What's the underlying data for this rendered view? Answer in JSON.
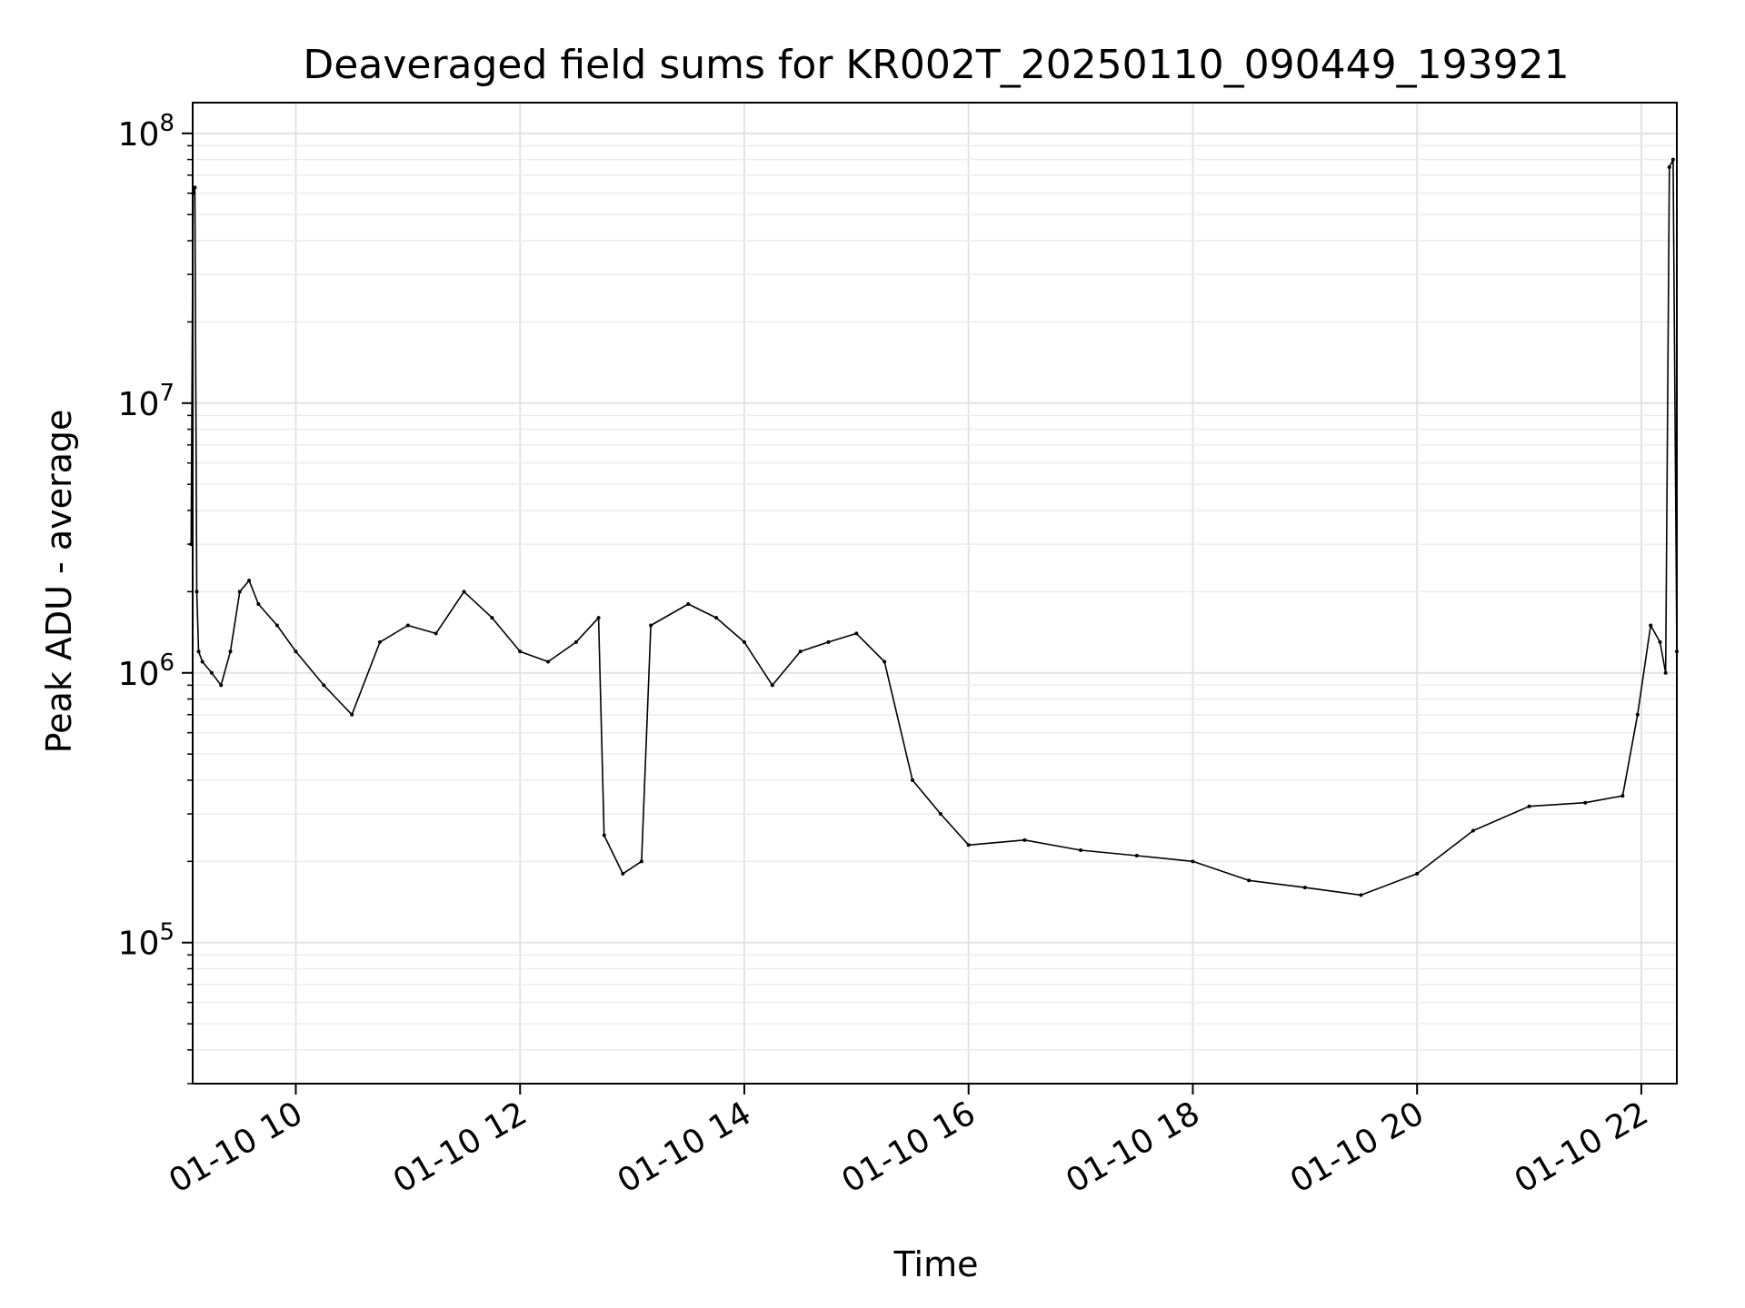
{
  "chart_data": {
    "type": "line",
    "title": "Deaveraged field sums for KR002T_20250110_090449_193921",
    "xlabel": "Time",
    "ylabel": "Peak ADU - average",
    "yscale": "log",
    "ylim": [
      30000,
      130000000
    ],
    "xlim": [
      "2025-01-10 09:04:49",
      "2025-01-10 22:19:00"
    ],
    "grid": true,
    "line_color": "#000000",
    "x_ticks": [
      {
        "label": "01-10 10",
        "value": "2025-01-10 10:00"
      },
      {
        "label": "01-10 12",
        "value": "2025-01-10 12:00"
      },
      {
        "label": "01-10 14",
        "value": "2025-01-10 14:00"
      },
      {
        "label": "01-10 16",
        "value": "2025-01-10 16:00"
      },
      {
        "label": "01-10 18",
        "value": "2025-01-10 18:00"
      },
      {
        "label": "01-10 20",
        "value": "2025-01-10 20:00"
      },
      {
        "label": "01-10 22",
        "value": "2025-01-10 22:00"
      }
    ],
    "y_ticks": [
      {
        "base": "10",
        "exp": "5",
        "value": 100000
      },
      {
        "base": "10",
        "exp": "6",
        "value": 1000000
      },
      {
        "base": "10",
        "exp": "7",
        "value": 10000000
      },
      {
        "base": "10",
        "exp": "8",
        "value": 100000000
      }
    ],
    "series": [
      {
        "x": [
          "2025-01-10 09:04",
          "2025-01-10 09:05",
          "2025-01-10 09:06",
          "2025-01-10 09:07",
          "2025-01-10 09:08",
          "2025-01-10 09:10",
          "2025-01-10 09:15",
          "2025-01-10 09:20",
          "2025-01-10 09:25",
          "2025-01-10 09:30",
          "2025-01-10 09:35",
          "2025-01-10 09:40",
          "2025-01-10 09:50",
          "2025-01-10 10:00",
          "2025-01-10 10:15",
          "2025-01-10 10:30",
          "2025-01-10 10:45",
          "2025-01-10 11:00",
          "2025-01-10 11:15",
          "2025-01-10 11:30",
          "2025-01-10 11:45",
          "2025-01-10 12:00",
          "2025-01-10 12:15",
          "2025-01-10 12:30",
          "2025-01-10 12:42",
          "2025-01-10 12:45",
          "2025-01-10 12:55",
          "2025-01-10 13:05",
          "2025-01-10 13:10",
          "2025-01-10 13:30",
          "2025-01-10 13:45",
          "2025-01-10 14:00",
          "2025-01-10 14:15",
          "2025-01-10 14:30",
          "2025-01-10 14:45",
          "2025-01-10 15:00",
          "2025-01-10 15:15",
          "2025-01-10 15:30",
          "2025-01-10 15:45",
          "2025-01-10 16:00",
          "2025-01-10 16:30",
          "2025-01-10 17:00",
          "2025-01-10 17:30",
          "2025-01-10 18:00",
          "2025-01-10 18:30",
          "2025-01-10 19:00",
          "2025-01-10 19:30",
          "2025-01-10 20:00",
          "2025-01-10 20:30",
          "2025-01-10 21:00",
          "2025-01-10 21:30",
          "2025-01-10 21:50",
          "2025-01-10 21:58",
          "2025-01-10 22:05",
          "2025-01-10 22:10",
          "2025-01-10 22:13",
          "2025-01-10 22:15",
          "2025-01-10 22:17",
          "2025-01-10 22:19"
        ],
        "y": [
          3000000,
          60000000,
          63000000,
          2000000,
          1200000,
          1100000,
          1000000,
          900000,
          1200000,
          2000000,
          2200000,
          1800000,
          1500000,
          1200000,
          900000,
          700000,
          1300000,
          1500000,
          1400000,
          2000000,
          1600000,
          1200000,
          1100000,
          1300000,
          1600000,
          250000,
          180000,
          200000,
          1500000,
          1800000,
          1600000,
          1300000,
          900000,
          1200000,
          1300000,
          1400000,
          1100000,
          400000,
          300000,
          230000,
          240000,
          220000,
          210000,
          200000,
          170000,
          160000,
          150000,
          180000,
          260000,
          320000,
          330000,
          350000,
          700000,
          1500000,
          1300000,
          1000000,
          75000000,
          80000000,
          1200000
        ]
      }
    ]
  }
}
